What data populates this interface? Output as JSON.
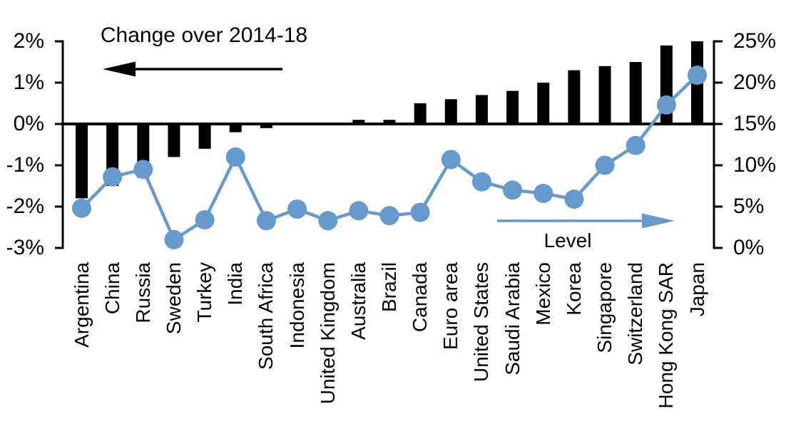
{
  "colors": {
    "background": "#FFFFFF",
    "bar": "#000000",
    "line": "#6699CC",
    "text": "#000000"
  },
  "annotations": {
    "bars_label": "Change over 2014-18",
    "bars_arrow_direction": "left",
    "line_label": "Level",
    "line_arrow_direction": "right"
  },
  "chart_data": {
    "type": "bar",
    "subtype": "combo dual-axis: bars (left axis) + line with markers (right axis)",
    "title": "Change over 2014-18",
    "categories": [
      "Argentina",
      "China",
      "Russia",
      "Sweden",
      "Turkey",
      "India",
      "South Africa",
      "Indonesia",
      "United Kingdom",
      "Australia",
      "Brazil",
      "Canada",
      "Euro area",
      "United States",
      "Saudi Arabia",
      "Mexico",
      "Korea",
      "Singapore",
      "Switzerland",
      "Hong Kong SAR",
      "Japan"
    ],
    "series": [
      {
        "name": "Change over 2014-18",
        "type": "bar",
        "axis": "left",
        "unit": "%",
        "values": [
          -1.8,
          -1.5,
          -1.3,
          -0.8,
          -0.6,
          -0.2,
          -0.1,
          0,
          0,
          0.1,
          0.1,
          0.5,
          0.6,
          0.7,
          0.8,
          1.0,
          1.3,
          1.4,
          1.5,
          1.9,
          2.0
        ]
      },
      {
        "name": "Level",
        "type": "line",
        "axis": "right",
        "unit": "%",
        "values": [
          4.8,
          8.6,
          9.5,
          1.0,
          3.4,
          11.0,
          3.3,
          4.7,
          3.3,
          4.5,
          3.9,
          4.3,
          10.7,
          8.0,
          7.0,
          6.6,
          5.9,
          10.0,
          12.4,
          17.3,
          20.9
        ]
      }
    ],
    "left_axis": {
      "min": -3,
      "max": 2,
      "tick_step": 1,
      "unit": "%",
      "tick_labels": [
        "2%",
        "1%",
        "0%",
        "-1%",
        "-2%",
        "-3%"
      ],
      "tick_values": [
        2,
        1,
        0,
        -1,
        -2,
        -3
      ]
    },
    "right_axis": {
      "min": 0,
      "max": 25,
      "tick_step": 5,
      "unit": "%",
      "tick_labels": [
        "25%",
        "20%",
        "15%",
        "10%",
        "5%",
        "0%"
      ],
      "tick_values": [
        25,
        20,
        15,
        10,
        5,
        0
      ]
    },
    "grid": false,
    "legend_position": "annotated arrows inside plot (no legend box)"
  }
}
